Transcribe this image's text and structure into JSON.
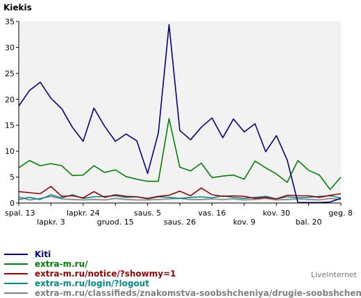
{
  "chart_data": {
    "type": "line",
    "title": "Kiekis",
    "xlabel": "",
    "ylabel": "",
    "ylim": [
      0,
      35
    ],
    "yticks": [
      0,
      5,
      10,
      15,
      20,
      25,
      30,
      35
    ],
    "grid": false,
    "legend_position": "bottom",
    "x_tick_labels": [
      {
        "label": "spal. 13",
        "index": 0,
        "row": 0
      },
      {
        "label": "lapkr. 3",
        "index": 3,
        "row": 1
      },
      {
        "label": "lapkr. 24",
        "index": 6,
        "row": 0
      },
      {
        "label": "gruod. 15",
        "index": 9,
        "row": 1
      },
      {
        "label": "saus. 5",
        "index": 12,
        "row": 0
      },
      {
        "label": "saus. 26",
        "index": 15,
        "row": 1
      },
      {
        "label": "vas. 16",
        "index": 18,
        "row": 0
      },
      {
        "label": "kov. 9",
        "index": 21,
        "row": 1
      },
      {
        "label": "kov. 30",
        "index": 24,
        "row": 0
      },
      {
        "label": "bal. 20",
        "index": 27,
        "row": 1
      },
      {
        "label": "geg. 8",
        "index": 30,
        "row": 0
      }
    ],
    "x_count": 31,
    "series": [
      {
        "name": "Kiti",
        "color": "#000080",
        "values": [
          18.7,
          21.7,
          23.3,
          20.2,
          18.2,
          14.6,
          11.9,
          18.3,
          14.8,
          11.9,
          13.3,
          12.0,
          5.7,
          13.5,
          34.4,
          14.0,
          12.2,
          14.6,
          16.4,
          12.6,
          16.2,
          13.7,
          15.3,
          9.9,
          13.0,
          8.3,
          0.1,
          0.1,
          0.1,
          0.2,
          0.9
        ]
      },
      {
        "name": "extra-m.ru/",
        "color": "#008000",
        "values": [
          6.8,
          8.2,
          7.2,
          7.6,
          7.2,
          5.3,
          5.4,
          7.2,
          5.9,
          6.4,
          5.1,
          4.6,
          4.2,
          4.2,
          16.3,
          6.9,
          6.2,
          7.7,
          4.9,
          5.2,
          5.4,
          4.6,
          8.1,
          6.8,
          5.6,
          4.0,
          8.2,
          6.3,
          5.4,
          2.6,
          5.0
        ]
      },
      {
        "name": "extra-m.ru/notice/?showmy=1",
        "color": "#990000",
        "values": [
          2.2,
          2.0,
          1.8,
          3.2,
          1.3,
          1.4,
          1.0,
          2.2,
          1.1,
          1.6,
          1.3,
          1.2,
          0.9,
          1.3,
          1.5,
          2.3,
          1.4,
          2.9,
          1.6,
          1.3,
          1.4,
          1.3,
          0.9,
          1.1,
          0.8,
          1.5,
          1.4,
          1.4,
          1.1,
          1.5,
          1.8
        ]
      },
      {
        "name": "extra-m.ru/login/?logout",
        "color": "#008B8B",
        "values": [
          0.7,
          1.1,
          0.7,
          1.6,
          1.0,
          1.6,
          0.9,
          1.2,
          1.3,
          1.4,
          1.1,
          1.2,
          0.8,
          1.2,
          1.1,
          0.9,
          1.1,
          1.2,
          1.0,
          1.4,
          1.1,
          0.9,
          1.1,
          1.3,
          0.8,
          1.2,
          1.0,
          1.1,
          1.3,
          1.4,
          1.0
        ]
      },
      {
        "name": "extra-m.ru/classifieds/znakomstva-soobshcheniya/drugie-soobshcheniya/",
        "color": "#808080",
        "values": [
          1.2,
          0.6,
          0.9,
          1.3,
          0.8,
          0.7,
          0.6,
          0.7,
          0.6,
          0.9,
          0.7,
          0.6,
          0.6,
          0.7,
          0.8,
          0.9,
          0.7,
          0.7,
          0.8,
          0.7,
          0.8,
          0.6,
          0.7,
          0.9,
          0.6,
          0.7,
          0.8,
          0.7,
          0.6,
          0.9,
          0.7
        ]
      }
    ]
  },
  "footer": "LiveInternet"
}
